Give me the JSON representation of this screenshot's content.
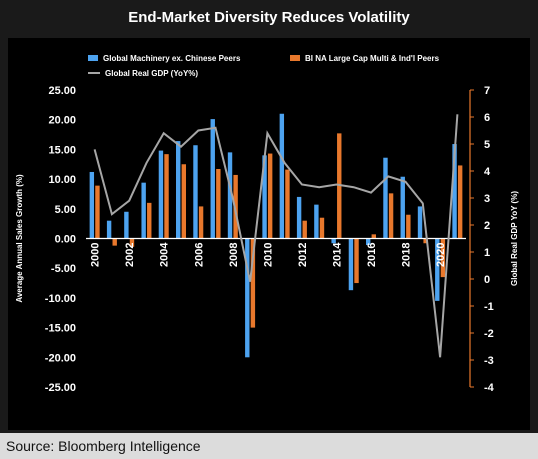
{
  "title": "End-Market Diversity Reduces Volatility",
  "source": "Source: Bloomberg Intelligence",
  "colors": {
    "machinery": "#4da3f0",
    "bi_peers": "#e8782c",
    "gdp": "#a6a6a6",
    "text": "#ffffff",
    "background": "#000000"
  },
  "chart_data": {
    "type": "bar",
    "title": "End-Market Diversity Reduces Volatility",
    "ylabel": "Average Annual Sales Growth (%)",
    "y2label": "Global Real GDP YoY (%)",
    "ylim": [
      -25,
      25
    ],
    "y2lim": [
      -4,
      7
    ],
    "grid": false,
    "legend_position": "top",
    "y_ticks": [
      "25.00",
      "20.00",
      "15.00",
      "10.00",
      "5.00",
      "0.00",
      "-5.00",
      "-10.00",
      "-15.00",
      "-20.00",
      "-25.00"
    ],
    "y2_ticks": [
      "7",
      "6",
      "5",
      "4",
      "3",
      "2",
      "1",
      "0",
      "-1",
      "-2",
      "-3",
      "-4"
    ],
    "x_tick_labels": [
      "2000",
      "2002",
      "2004",
      "2006",
      "2008",
      "2010",
      "2012",
      "2014",
      "2016",
      "2018",
      "2020"
    ],
    "categories": [
      "2000",
      "2001",
      "2002",
      "2003",
      "2004",
      "2005",
      "2006",
      "2007",
      "2008",
      "2009",
      "2010",
      "2011",
      "2012",
      "2013",
      "2014",
      "2015",
      "2016",
      "2017",
      "2018",
      "2019",
      "2020",
      "2021"
    ],
    "series": [
      {
        "name": "Global Machinery ex. Chinese Peers",
        "type": "bar",
        "axis": "left",
        "values": [
          11.2,
          3.0,
          4.5,
          9.4,
          14.8,
          16.4,
          15.7,
          20.1,
          14.5,
          -20.0,
          14.0,
          21.0,
          7.0,
          5.7,
          -0.8,
          -8.7,
          -1.1,
          13.6,
          10.4,
          5.4,
          -10.5,
          15.9
        ]
      },
      {
        "name": "BI NA Large Cap Multi & Ind'l Peers",
        "type": "bar",
        "axis": "left",
        "values": [
          8.9,
          -1.2,
          -1.4,
          6.0,
          14.2,
          12.5,
          5.4,
          11.7,
          10.7,
          -15.0,
          14.3,
          11.6,
          3.0,
          3.5,
          17.7,
          -7.5,
          0.7,
          7.6,
          4.0,
          -0.8,
          -6.5,
          12.3
        ]
      },
      {
        "name": "Global Real GDP (YoY%)",
        "type": "line",
        "axis": "right",
        "values": [
          4.8,
          2.4,
          2.9,
          4.3,
          5.4,
          4.9,
          5.5,
          5.6,
          3.0,
          -0.1,
          5.4,
          4.3,
          3.5,
          3.4,
          3.5,
          3.4,
          3.2,
          3.8,
          3.6,
          2.8,
          -2.9,
          6.1
        ]
      }
    ]
  }
}
